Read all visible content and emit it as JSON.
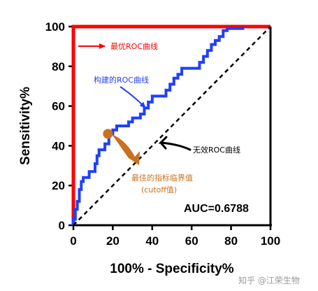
{
  "chart_data": {
    "type": "line",
    "xlabel": "100% - Specificity%",
    "ylabel": "Sensitivity%",
    "xlim": [
      0,
      100
    ],
    "ylim": [
      0,
      100
    ],
    "xticks": [
      "0",
      "20",
      "40",
      "60",
      "80",
      "100"
    ],
    "yticks": [
      "0",
      "20",
      "40",
      "60",
      "80",
      "100"
    ],
    "grid": false,
    "series": [
      {
        "name": "最优ROC曲线",
        "color": "#ff0000",
        "x": [
          0,
          0,
          100
        ],
        "y": [
          0,
          100,
          100
        ]
      },
      {
        "name": "构建的ROC曲线",
        "color": "#1f3fff",
        "x": [
          0,
          0,
          1,
          1,
          2,
          2,
          3,
          3,
          4,
          4,
          5,
          5,
          8,
          8,
          11,
          11,
          12,
          12,
          13,
          13,
          16,
          16,
          18,
          18,
          20,
          20,
          22,
          22,
          28,
          28,
          30,
          30,
          34,
          34,
          36,
          36,
          38,
          38,
          40,
          40,
          47,
          47,
          49,
          49,
          51,
          51,
          53,
          53,
          55,
          55,
          64,
          64,
          66,
          66,
          68,
          68,
          70,
          70,
          72,
          72,
          74,
          74,
          76,
          76,
          78,
          78,
          86,
          86
        ],
        "y": [
          0,
          3,
          3,
          8,
          8,
          12,
          12,
          18,
          18,
          22,
          22,
          24,
          24,
          27,
          27,
          31,
          31,
          35,
          35,
          38,
          38,
          41,
          41,
          46,
          46,
          48,
          48,
          50,
          50,
          52,
          52,
          54,
          54,
          56,
          56,
          59,
          59,
          62,
          62,
          65,
          65,
          68,
          68,
          71,
          71,
          74,
          74,
          76,
          76,
          79,
          79,
          82,
          82,
          85,
          85,
          88,
          88,
          91,
          91,
          93,
          93,
          95,
          95,
          98,
          98,
          99,
          99,
          100
        ]
      },
      {
        "name": "无效ROC曲线",
        "color": "#000000",
        "style": "dashed",
        "x": [
          0,
          100
        ],
        "y": [
          0,
          100
        ]
      }
    ],
    "highlight_point": {
      "x": 17.5,
      "y": 46,
      "color": "#c9711f"
    },
    "annotations": {
      "optimal": "最优ROC曲线",
      "constructed": "构建的ROC曲线",
      "invalid": "无效ROC曲线",
      "cutoff_line1": "最佳的指标临界值",
      "cutoff_line2": "(cutoff值)",
      "auc": "AUC=0.6788"
    }
  },
  "watermark": "知乎 @江荣生物"
}
